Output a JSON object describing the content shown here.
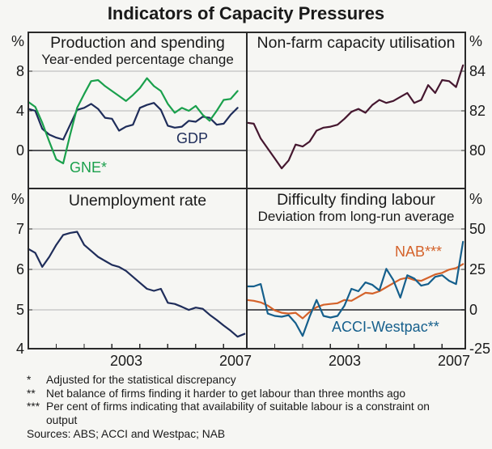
{
  "title": "Indicators of Capacity Pressures",
  "colors": {
    "gdp": "#1f2d5a",
    "gne": "#1aa04c",
    "capacity": "#45172f",
    "acci": "#155f8c",
    "nab": "#d4622a",
    "grid": "#b4b4b4",
    "zero_line": "#56575b",
    "frame": "#2a2a2a",
    "background": "#f6f6f3",
    "text": "#1a1a1a"
  },
  "chart_data": [
    {
      "panel": "top-left",
      "type": "line",
      "title": "Production and spending",
      "subtitle": "Year-ended percentage change",
      "unit": "%",
      "x_range": [
        2000,
        2007.83
      ],
      "yticks": [
        {
          "label": "8",
          "value": 8
        },
        {
          "label": "4",
          "value": 4
        },
        {
          "label": "0",
          "value": 0,
          "dark": true
        }
      ],
      "series": [
        {
          "name": "GDP",
          "label": "GDP",
          "color_key": "gdp",
          "x_start": 2000,
          "x_step": 0.25,
          "values": [
            4.2,
            4.0,
            2.2,
            1.6,
            1.3,
            1.1,
            2.6,
            4.1,
            4.3,
            4.7,
            4.2,
            3.3,
            3.2,
            2.0,
            2.4,
            2.6,
            4.3,
            4.6,
            4.8,
            4.1,
            2.5,
            2.3,
            2.4,
            3.0,
            2.9,
            3.4,
            3.3,
            2.6,
            2.7,
            3.6,
            4.3
          ]
        },
        {
          "name": "GNE",
          "label": "GNE*",
          "color_key": "gne",
          "x_start": 2000,
          "x_step": 0.25,
          "values": [
            4.9,
            4.4,
            2.8,
            0.9,
            -0.9,
            -1.3,
            1.6,
            4.3,
            5.7,
            7.0,
            7.1,
            6.5,
            6.0,
            5.5,
            5.0,
            5.6,
            6.3,
            7.3,
            6.5,
            6.0,
            4.7,
            3.8,
            4.3,
            4.0,
            4.5,
            3.6,
            3.0,
            4.0,
            5.1,
            5.2,
            6.0
          ]
        }
      ]
    },
    {
      "panel": "top-right",
      "type": "line",
      "title": "Non-farm capacity utilisation",
      "unit": "%",
      "x_range": [
        2000,
        2007.83
      ],
      "yticks": [
        {
          "label": "84",
          "value": 84
        },
        {
          "label": "82",
          "value": 82
        },
        {
          "label": "80",
          "value": 80
        }
      ],
      "series": [
        {
          "name": "Non-farm capacity utilisation",
          "label": "",
          "color_key": "capacity",
          "x_start": 2000,
          "x_step": 0.25,
          "values": [
            81.4,
            81.35,
            80.6,
            80.1,
            79.6,
            79.1,
            79.5,
            80.3,
            80.2,
            80.45,
            81.0,
            81.15,
            81.2,
            81.3,
            81.6,
            81.95,
            82.1,
            81.9,
            82.3,
            82.55,
            82.4,
            82.5,
            82.7,
            82.9,
            82.4,
            82.55,
            83.3,
            82.9,
            83.55,
            83.5,
            83.2,
            84.3
          ]
        }
      ]
    },
    {
      "panel": "bottom-left",
      "type": "line",
      "title": "Unemployment rate",
      "unit": "%",
      "x_range": [
        2000,
        2007.83
      ],
      "yticks": [
        {
          "label": "7",
          "value": 7
        },
        {
          "label": "6",
          "value": 6
        },
        {
          "label": "5",
          "value": 5
        },
        {
          "label": "4",
          "value": 4,
          "edge": true
        }
      ],
      "xticks": [
        {
          "label": "2003"
        },
        {
          "label": "2007"
        }
      ],
      "series": [
        {
          "name": "Unemployment rate",
          "label": "",
          "color_key": "gdp",
          "x_start": 2000,
          "x_step": 0.25,
          "values": [
            6.5,
            6.4,
            6.05,
            6.3,
            6.6,
            6.85,
            6.9,
            6.93,
            6.6,
            6.45,
            6.3,
            6.2,
            6.1,
            6.05,
            5.95,
            5.8,
            5.65,
            5.5,
            5.45,
            5.5,
            5.15,
            5.12,
            5.05,
            4.97,
            5.03,
            5.0,
            4.85,
            4.72,
            4.58,
            4.45,
            4.3,
            4.37
          ]
        }
      ]
    },
    {
      "panel": "bottom-right",
      "type": "line",
      "title": "Difficulty finding labour",
      "subtitle": "Deviation from long-run average",
      "unit": "%",
      "x_range": [
        2000,
        2007.83
      ],
      "yticks": [
        {
          "label": "50",
          "value": 50
        },
        {
          "label": "25",
          "value": 25
        },
        {
          "label": "0",
          "value": 0,
          "dark": true
        },
        {
          "label": "-25",
          "value": -25,
          "edge": true
        }
      ],
      "xticks": [
        {
          "label": "2003"
        },
        {
          "label": "2007"
        }
      ],
      "series": [
        {
          "name": "NAB",
          "label": "NAB***",
          "color_key": "nab",
          "x_start": 2000,
          "x_step": 0.25,
          "values": [
            5.5,
            5,
            4,
            2,
            -1,
            -2.5,
            -3,
            -2.5,
            -6,
            -2,
            1,
            2.5,
            3,
            3.5,
            5.5,
            5,
            7.5,
            10,
            9.5,
            11,
            13.5,
            16,
            18.5,
            19.5,
            18,
            17.5,
            19.5,
            21.5,
            22.5,
            24.5,
            25.5,
            28
          ]
        },
        {
          "name": "ACCI-Westpac",
          "label": "ACCI-Westpac**",
          "color_key": "acci",
          "x_start": 2000,
          "x_step": 0.25,
          "values": [
            14,
            14,
            15.5,
            -3,
            -4.5,
            -5,
            -4,
            -9,
            -17,
            -5,
            5.5,
            -4.5,
            -5.5,
            -4.5,
            2,
            12.5,
            11,
            16.5,
            15,
            11.5,
            25,
            18,
            7,
            21,
            19,
            14.5,
            15.5,
            20,
            21,
            17.5,
            15.5,
            42
          ]
        }
      ]
    }
  ],
  "footnotes": [
    {
      "marker": "*",
      "text": "Adjusted for the statistical discrepancy"
    },
    {
      "marker": "**",
      "text": "Net balance of firms finding it harder to get labour than three months ago"
    },
    {
      "marker": "***",
      "text": "Per cent of firms indicating that availability of suitable labour is a constraint on output"
    }
  ],
  "sources": "Sources: ABS; ACCI and Westpac; NAB"
}
